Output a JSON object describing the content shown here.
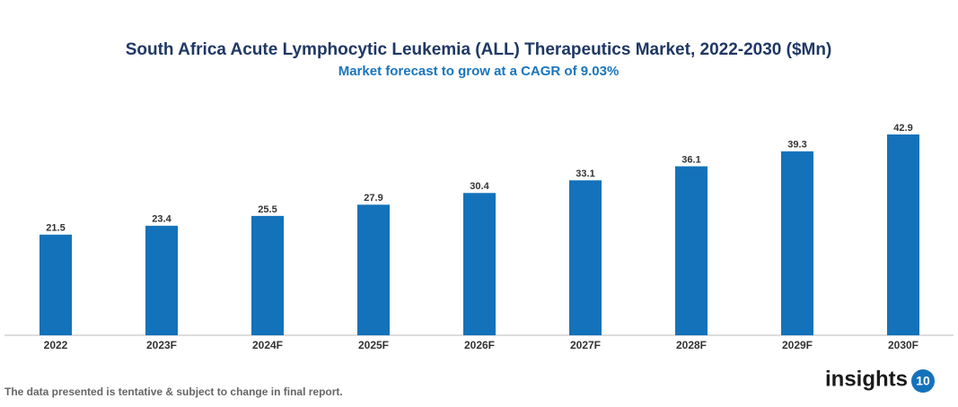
{
  "chart_data": {
    "type": "bar",
    "title": "South Africa Acute Lymphocytic Leukemia (ALL) Therapeutics Market, 2022-2030 ($Mn)",
    "subtitle": "Market forecast to grow at a CAGR of 9.03%",
    "categories": [
      "2022",
      "2023F",
      "2024F",
      "2025F",
      "2026F",
      "2027F",
      "2028F",
      "2029F",
      "2030F"
    ],
    "values": [
      21.5,
      23.4,
      25.5,
      27.9,
      30.4,
      33.1,
      36.1,
      39.3,
      42.9
    ],
    "color": "#1472ba"
  },
  "footnote": "The data presented is tentative & subject to change in final report.",
  "logo": {
    "text": "insights",
    "badge": "10"
  }
}
